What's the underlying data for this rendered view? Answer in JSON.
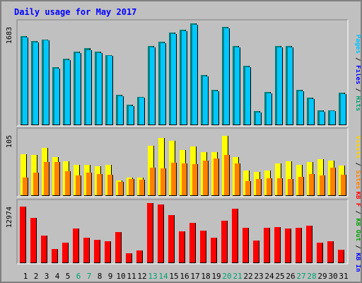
{
  "page": {
    "title": "Daily usage for May 2017"
  },
  "chart_data": {
    "type": "bar",
    "title": "Daily usage for May 2017",
    "categories": [
      "1",
      "2",
      "3",
      "4",
      "5",
      "6",
      "7",
      "8",
      "9",
      "10",
      "11",
      "12",
      "13",
      "14",
      "15",
      "16",
      "17",
      "18",
      "19",
      "20",
      "21",
      "22",
      "23",
      "24",
      "25",
      "26",
      "27",
      "28",
      "29",
      "30",
      "31"
    ],
    "weekend_categories": [
      "6",
      "7",
      "13",
      "14",
      "20",
      "21",
      "27",
      "28"
    ],
    "panels": [
      {
        "id": "top",
        "tick_label": "1683",
        "y_max": 1683,
        "axis_labels": [
          {
            "text": "Pages",
            "color": "#00c0ff"
          },
          {
            "text": " / ",
            "color": "#000000"
          },
          {
            "text": "Files",
            "color": "#0000ff"
          },
          {
            "text": " / ",
            "color": "#000000"
          },
          {
            "text": "Hits",
            "color": "#00a070"
          }
        ],
        "series": [
          {
            "name": "Hits",
            "color": "#008080",
            "values": [
              1470,
              1390,
              1420,
              960,
              1100,
              1220,
              1270,
              1220,
              1160,
              500,
              340,
              470,
              1310,
              1380,
              1530,
              1580,
              1683,
              830,
              580,
              1620,
              1310,
              980,
              230,
              550,
              1310,
              1310,
              580,
              450,
              240,
              250,
              540
            ]
          },
          {
            "name": "Files",
            "color": "#00c8ff",
            "values": [
              1450,
              1370,
              1400,
              940,
              1080,
              1190,
              1240,
              1190,
              1140,
              480,
              320,
              450,
              1290,
              1360,
              1510,
              1560,
              1663,
              810,
              560,
              1600,
              1290,
              960,
              210,
              530,
              1290,
              1290,
              560,
              430,
              220,
              230,
              520
            ]
          }
        ]
      },
      {
        "id": "middle",
        "tick_label": "105",
        "y_max": 105,
        "axis_labels": [
          {
            "text": "Visits",
            "color": "#ffd000"
          },
          {
            "text": " / ",
            "color": "#000000"
          },
          {
            "text": "Sites",
            "color": "#ff8000"
          }
        ],
        "series": [
          {
            "name": "Visits",
            "color": "#ffff00",
            "values": [
              68,
              67,
              78,
              64,
              57,
              51,
              51,
              48,
              51,
              25,
              30,
              30,
              82,
              95,
              90,
              75,
              81,
              72,
              71,
              98,
              63,
              42,
              39,
              42,
              53,
              56,
              51,
              55,
              60,
              58,
              50
            ]
          },
          {
            "name": "Sites",
            "color": "#ff8000",
            "values": [
              30,
              38,
              55,
              55,
              40,
              33,
              38,
              36,
              35,
              23,
              28,
              26,
              46,
              45,
              54,
              53,
              52,
              58,
              61,
              67,
              53,
              24,
              28,
              29,
              29,
              28,
              31,
              36,
              33,
              46,
              35
            ]
          }
        ]
      },
      {
        "id": "bottom",
        "tick_label": "12974",
        "y_max": 12974,
        "axis_labels": [
          {
            "text": "KB F",
            "color": "#ff0000"
          },
          {
            "text": " / ",
            "color": "#000000"
          },
          {
            "text": "KB Out",
            "color": "#00a000"
          },
          {
            "text": " / ",
            "color": "#000000"
          },
          {
            "text": "KB In",
            "color": "#0000ff"
          }
        ],
        "series": [
          {
            "name": "KB F",
            "color": "#ff0000",
            "values": [
              12150,
              9700,
              5880,
              2990,
              4410,
              7420,
              5560,
              5060,
              4710,
              6780,
              2150,
              2680,
              12974,
              12600,
              10330,
              6940,
              8770,
              6970,
              5570,
              9150,
              11730,
              7570,
              4840,
              7650,
              7780,
              7440,
              7650,
              8130,
              4480,
              4760,
              2940
            ]
          }
        ]
      }
    ]
  }
}
